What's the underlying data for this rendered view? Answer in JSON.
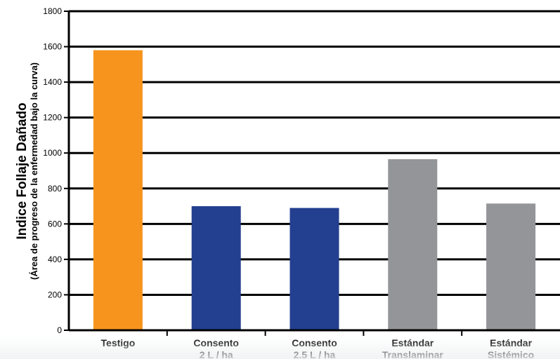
{
  "chart_data": {
    "type": "bar",
    "title": "",
    "ylabel": "Indice Follaje Dañado",
    "ylabel_sub": "(Área de progreso de la enfermedad bajo la curva)",
    "ylim": [
      0,
      1800
    ],
    "yticks": [
      0,
      200,
      400,
      600,
      800,
      1000,
      1200,
      1400,
      1600,
      1800
    ],
    "grid": true,
    "categories": [
      [
        "Testigo"
      ],
      [
        "Consento",
        "2 L / ha"
      ],
      [
        "Consento",
        "2.5 L / ha"
      ],
      [
        "Estándar",
        "Translaminar"
      ],
      [
        "Estándar",
        "Sistémico"
      ]
    ],
    "values": [
      1580,
      700,
      690,
      965,
      715
    ],
    "bar_colors": [
      "#F7941D",
      "#233F8F",
      "#233F8F",
      "#939598",
      "#939598"
    ]
  }
}
